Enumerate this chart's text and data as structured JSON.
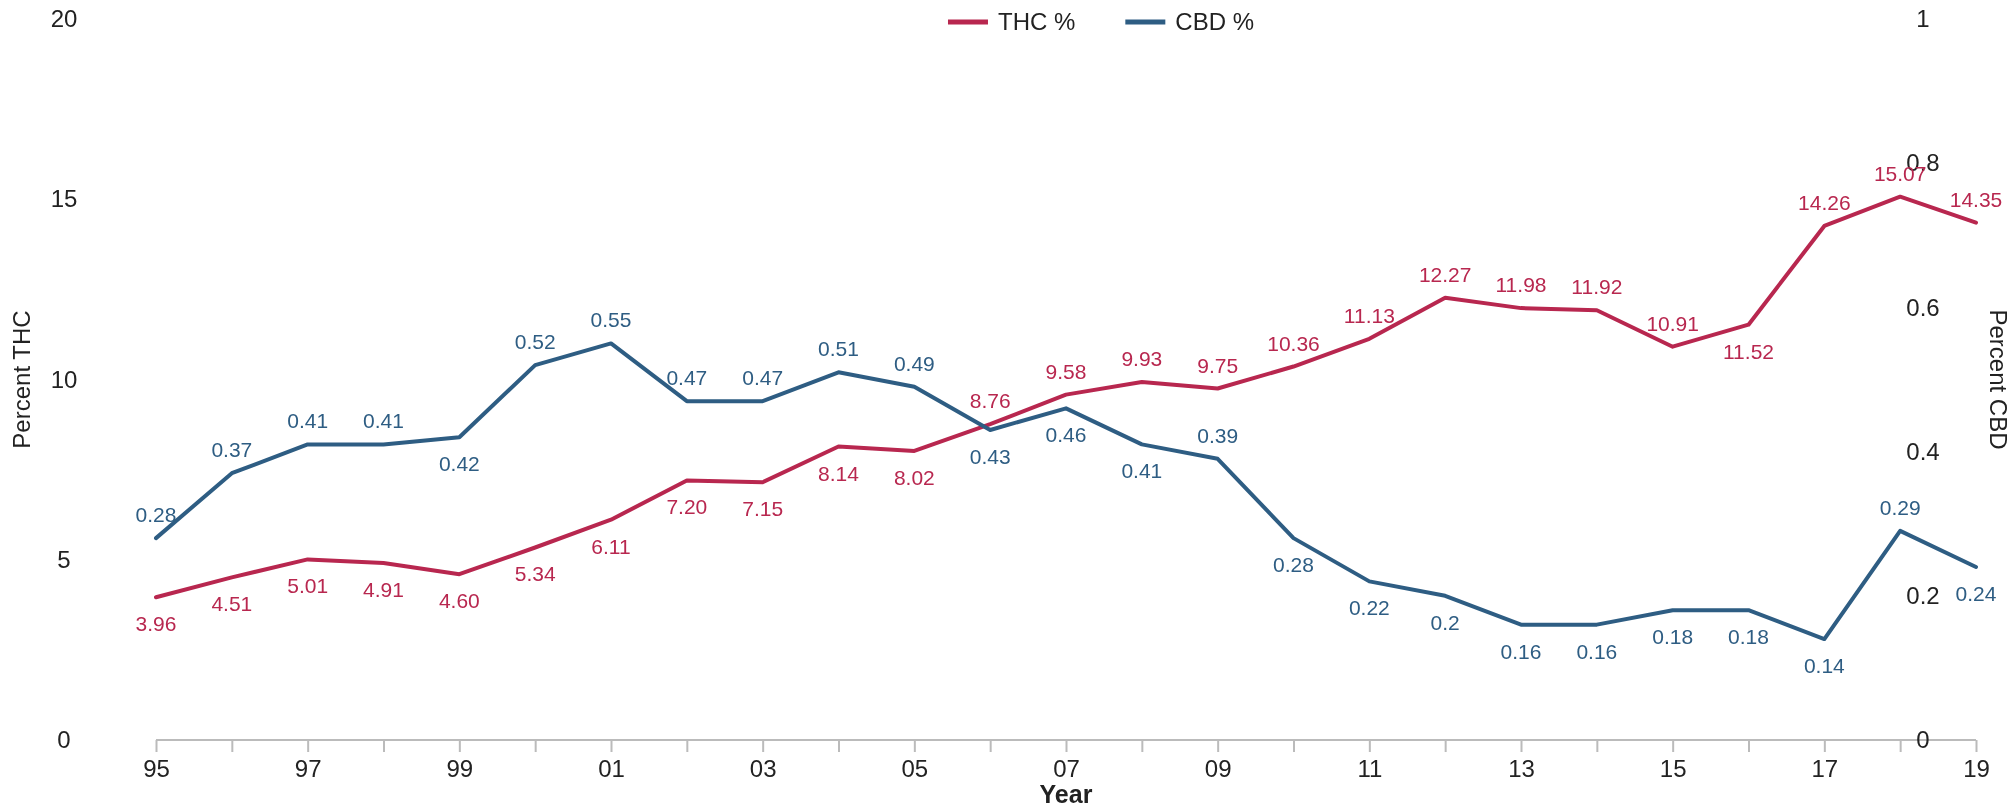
{
  "chart_data": {
    "type": "line",
    "xlabel": "Year",
    "ylabel": "Percent THC",
    "y2label": "Percent CBD",
    "categories": [
      "95",
      null,
      "97",
      null,
      "99",
      null,
      "01",
      null,
      "03",
      null,
      "05",
      null,
      "07",
      null,
      "09",
      null,
      "11",
      null,
      "13",
      null,
      "15",
      null,
      "17",
      null,
      "19"
    ],
    "ylim": [
      0,
      20
    ],
    "yticks": [
      0,
      5,
      10,
      15,
      20
    ],
    "y2lim": [
      0,
      1
    ],
    "y2ticks": [
      0,
      0.2,
      0.4,
      0.6,
      0.8,
      1
    ],
    "legend": "top",
    "marker": "none",
    "line_style": "solid",
    "grid": false,
    "series": [
      {
        "name": "THC %",
        "color": "#b8274f",
        "values": [
          3.96,
          4.51,
          5.01,
          4.91,
          4.6,
          5.34,
          6.11,
          7.2,
          7.15,
          8.14,
          8.02,
          8.76,
          9.58,
          9.93,
          9.75,
          10.36,
          11.13,
          12.27,
          11.98,
          11.92,
          10.91,
          11.52,
          14.26,
          15.07,
          14.35
        ],
        "value_labels": [
          "3.96",
          "4.51",
          "5.01",
          "4.91",
          "4.60",
          "5.34",
          "6.11",
          "7.20",
          "7.15",
          "8.14",
          "8.02",
          "8.76",
          "9.58",
          "9.93",
          "9.75",
          "10.36",
          "11.13",
          "12.27",
          "11.98",
          "11.92",
          "10.91",
          "11.52",
          "14.26",
          "15.07",
          "14.35"
        ]
      },
      {
        "name": "CBD %",
        "color": "#2e5d83",
        "axis": "y2",
        "values": [
          0.28,
          0.37,
          0.41,
          0.41,
          0.42,
          0.52,
          0.55,
          0.47,
          0.47,
          0.51,
          0.49,
          0.43,
          0.46,
          0.41,
          0.39,
          0.28,
          0.22,
          0.2,
          0.16,
          0.16,
          0.18,
          0.18,
          0.14,
          0.29,
          0.24
        ],
        "value_labels": [
          "0.28",
          "0.37",
          "0.41",
          "0.41",
          "0.42",
          "0.52",
          "0.55",
          "0.47",
          "0.47",
          "0.51",
          "0.49",
          "0.43",
          "0.46",
          "0.41",
          "0.39",
          "0.28",
          "0.22",
          "0.2",
          "0.16",
          "0.16",
          "0.18",
          "0.18",
          "0.14",
          "0.29",
          "0.24"
        ]
      }
    ]
  }
}
